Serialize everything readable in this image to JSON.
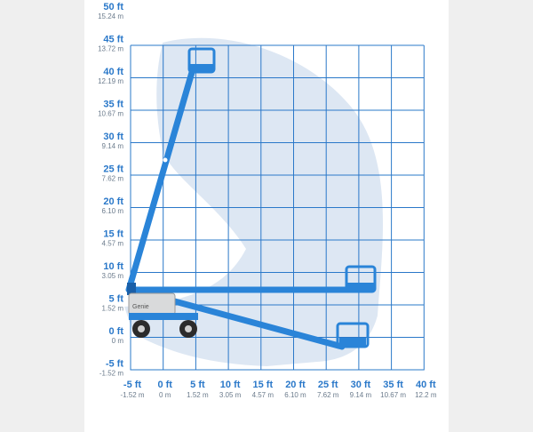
{
  "diagram": {
    "y_axis": [
      {
        "ft": "50 ft",
        "m": "15.24 m"
      },
      {
        "ft": "45 ft",
        "m": "13.72 m"
      },
      {
        "ft": "40 ft",
        "m": "12.19 m"
      },
      {
        "ft": "35 ft",
        "m": "10.67 m"
      },
      {
        "ft": "30 ft",
        "m": "9.14 m"
      },
      {
        "ft": "25 ft",
        "m": "7.62 m"
      },
      {
        "ft": "20 ft",
        "m": "6.10 m"
      },
      {
        "ft": "15 ft",
        "m": "4.57 m"
      },
      {
        "ft": "10 ft",
        "m": "3.05 m"
      },
      {
        "ft": "5 ft",
        "m": "1.52 m"
      },
      {
        "ft": "0 ft",
        "m": "0 m"
      },
      {
        "ft": "-5 ft",
        "m": "-1.52 m"
      }
    ],
    "x_axis": [
      {
        "ft": "-5 ft",
        "m": "-1.52 m"
      },
      {
        "ft": "0 ft",
        "m": "0 m"
      },
      {
        "ft": "5 ft",
        "m": "1.52 m"
      },
      {
        "ft": "10 ft",
        "m": "3.05 m"
      },
      {
        "ft": "15 ft",
        "m": "4.57 m"
      },
      {
        "ft": "20 ft",
        "m": "6.10 m"
      },
      {
        "ft": "25 ft",
        "m": "7.62 m"
      },
      {
        "ft": "30 ft",
        "m": "9.14 m"
      },
      {
        "ft": "35 ft",
        "m": "10.67 m"
      },
      {
        "ft": "40 ft",
        "m": "12.2 m"
      }
    ],
    "machine_logo_text": "Genie",
    "colors": {
      "grid": "#2a78c9",
      "envelope": "#dde7f3",
      "boom": "#2a84d8",
      "boom_dark": "#1a5fa8",
      "chassis": "#d9dadb",
      "tire": "#2b2b2b"
    }
  }
}
